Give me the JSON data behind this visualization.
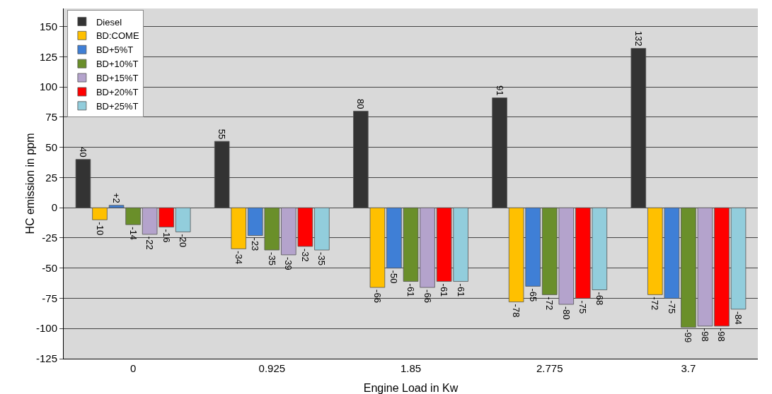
{
  "chart_data": {
    "type": "bar",
    "xlabel": "Engine Load in Kw",
    "ylabel": "HC emission in ppm",
    "categories": [
      "0",
      "0.925",
      "1.85",
      "2.775",
      "3.7"
    ],
    "series": [
      {
        "name": "Diesel",
        "color": "#333333",
        "values": [
          40,
          55,
          80,
          91,
          132
        ],
        "value_labels": [
          "40",
          "55",
          "80",
          "91",
          "132"
        ]
      },
      {
        "name": "BD:COME",
        "color": "#ffc000",
        "values": [
          -10,
          -34,
          -66,
          -78,
          -72
        ],
        "value_labels": [
          "-10",
          "-34",
          "-66",
          "-78",
          "-72"
        ]
      },
      {
        "name": "BD+5%T",
        "color": "#3f7fd6",
        "values": [
          2,
          -23,
          -50,
          -65,
          -75
        ],
        "value_labels": [
          "+2",
          "-23",
          "-50",
          "-65",
          "-75"
        ]
      },
      {
        "name": "BD+10%T",
        "color": "#6a8f2a",
        "values": [
          -14,
          -35,
          -61,
          -72,
          -99
        ],
        "value_labels": [
          "-14",
          "-35",
          "-61",
          "-72",
          "-99"
        ]
      },
      {
        "name": "BD+15%T",
        "color": "#b4a3cc",
        "values": [
          -22,
          -39,
          -66,
          -80,
          -98
        ],
        "value_labels": [
          "-22",
          "-39",
          "-66",
          "-80",
          "-98"
        ]
      },
      {
        "name": "BD+20%T",
        "color": "#ff0000",
        "values": [
          -16,
          -32,
          -61,
          -75,
          -98
        ],
        "value_labels": [
          "-16",
          "-32",
          "-61",
          "-75",
          "-98"
        ]
      },
      {
        "name": "BD+25%T",
        "color": "#92cddc",
        "values": [
          -20,
          -35,
          -61,
          -68,
          -84
        ],
        "value_labels": [
          "-20",
          "-35",
          "-61",
          "-68",
          "-84"
        ]
      }
    ],
    "ylim": [
      -125,
      165
    ],
    "yticks": [
      -125,
      -100,
      -75,
      -50,
      -25,
      0,
      25,
      50,
      75,
      100,
      125,
      150
    ],
    "grid": "y",
    "legend": "top left"
  }
}
